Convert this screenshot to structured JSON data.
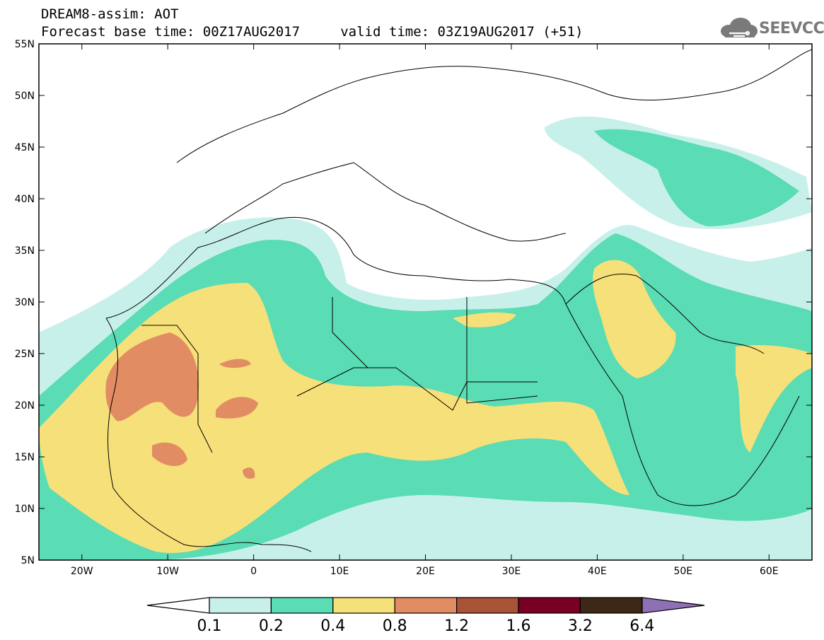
{
  "header": {
    "title": "DREAM8-assim: AOT",
    "subtitle": "Forecast base time: 00Z17AUG2017     valid time: 03Z19AUG2017 (+51)"
  },
  "logo": {
    "text": "SEEVCCC",
    "icon": "cloud-icon"
  },
  "map": {
    "type": "contour-map",
    "lon_range": [
      -25,
      65
    ],
    "lat_range": [
      5,
      55
    ],
    "xticks": [
      {
        "value": -20,
        "label": "20W"
      },
      {
        "value": -10,
        "label": "10W"
      },
      {
        "value": 0,
        "label": "0"
      },
      {
        "value": 10,
        "label": "10E"
      },
      {
        "value": 20,
        "label": "20E"
      },
      {
        "value": 30,
        "label": "30E"
      },
      {
        "value": 40,
        "label": "40E"
      },
      {
        "value": 50,
        "label": "50E"
      },
      {
        "value": 60,
        "label": "60E"
      }
    ],
    "yticks": [
      {
        "value": 55,
        "label": "55N"
      },
      {
        "value": 50,
        "label": "50N"
      },
      {
        "value": 45,
        "label": "45N"
      },
      {
        "value": 40,
        "label": "40N"
      },
      {
        "value": 35,
        "label": "35N"
      },
      {
        "value": 30,
        "label": "30N"
      },
      {
        "value": 25,
        "label": "25N"
      },
      {
        "value": 20,
        "label": "20N"
      },
      {
        "value": 15,
        "label": "15N"
      },
      {
        "value": 10,
        "label": "10N"
      },
      {
        "value": 5,
        "label": "5N"
      }
    ]
  },
  "colorbar": {
    "labels": [
      "0.1",
      "0.2",
      "0.4",
      "0.8",
      "1.2",
      "1.6",
      "3.2",
      "6.4"
    ],
    "colors": [
      "#ffffff",
      "#c8f0ea",
      "#5adcb4",
      "#f6e07a",
      "#e28c64",
      "#a85238",
      "#780024",
      "#3c2814",
      "#9070b4"
    ]
  },
  "colors": {
    "c1": "#c8f0ea",
    "c2": "#5adcb4",
    "c3": "#f6e07a",
    "c4": "#e28c64"
  }
}
